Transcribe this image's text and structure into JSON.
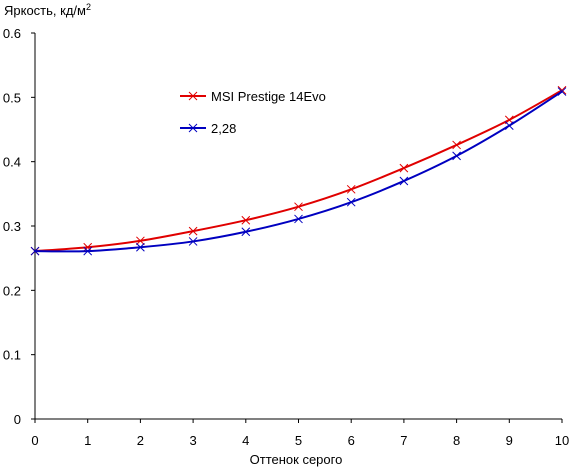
{
  "chart_data": {
    "type": "line",
    "ylabel": "Яркость, кд/м",
    "ylabel_sup": "2",
    "xlabel": "Оттенок серого",
    "xlim": [
      0,
      10
    ],
    "ylim": [
      0,
      0.6
    ],
    "x_ticks": [
      0,
      1,
      2,
      3,
      4,
      5,
      6,
      7,
      8,
      9,
      10
    ],
    "y_ticks": [
      0,
      0.1,
      0.2,
      0.3,
      0.4,
      0.5,
      0.6
    ],
    "y_tick_labels": [
      "0",
      "0.1",
      "0.2",
      "0.3",
      "0.4",
      "0.5",
      "0.6"
    ],
    "grid": false,
    "legend_position": "upper-left inside plot",
    "x": [
      0,
      1,
      2,
      3,
      4,
      5,
      6,
      7,
      8,
      9,
      10
    ],
    "series": [
      {
        "name": "MSI Prestige 14Evo",
        "color": "#e00000",
        "marker": "x",
        "values": [
          0.261,
          0.267,
          0.277,
          0.292,
          0.309,
          0.33,
          0.357,
          0.39,
          0.426,
          0.465,
          0.511
        ]
      },
      {
        "name": "2,28",
        "color": "#0000c0",
        "marker": "x",
        "values": [
          0.261,
          0.261,
          0.267,
          0.276,
          0.291,
          0.311,
          0.337,
          0.37,
          0.409,
          0.456,
          0.509
        ]
      }
    ]
  }
}
